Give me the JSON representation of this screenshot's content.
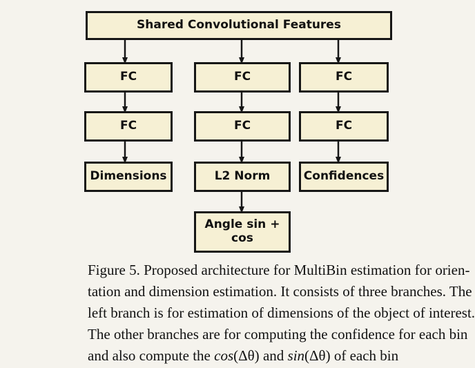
{
  "diagram": {
    "top_box": "Shared Convolutional Features",
    "left_branch": [
      "FC",
      "FC",
      "Dimensions"
    ],
    "middle_branch": [
      "FC",
      "FC",
      "L2 Norm"
    ],
    "middle_output_line1": "Angle sin +",
    "middle_output_line2": "cos",
    "right_branch": [
      "FC",
      "FC",
      "Confidences"
    ]
  },
  "caption": {
    "lines": [
      "Figure 5. Proposed architecture for MultiBin estimation for orien-",
      "tation and dimension estimation. It consists of three branches. The",
      "left branch is for estimation of dimensions of the object of interest.",
      "The other branches are for computing the confidence for each bin"
    ],
    "last_line_part1": "and also compute the ",
    "cos_fn": "cos",
    "cos_arg": "(Δθ)",
    "and_word": " and ",
    "sin_fn": "sin",
    "sin_arg": "(Δθ)",
    "last_line_part2": " of each bin"
  }
}
